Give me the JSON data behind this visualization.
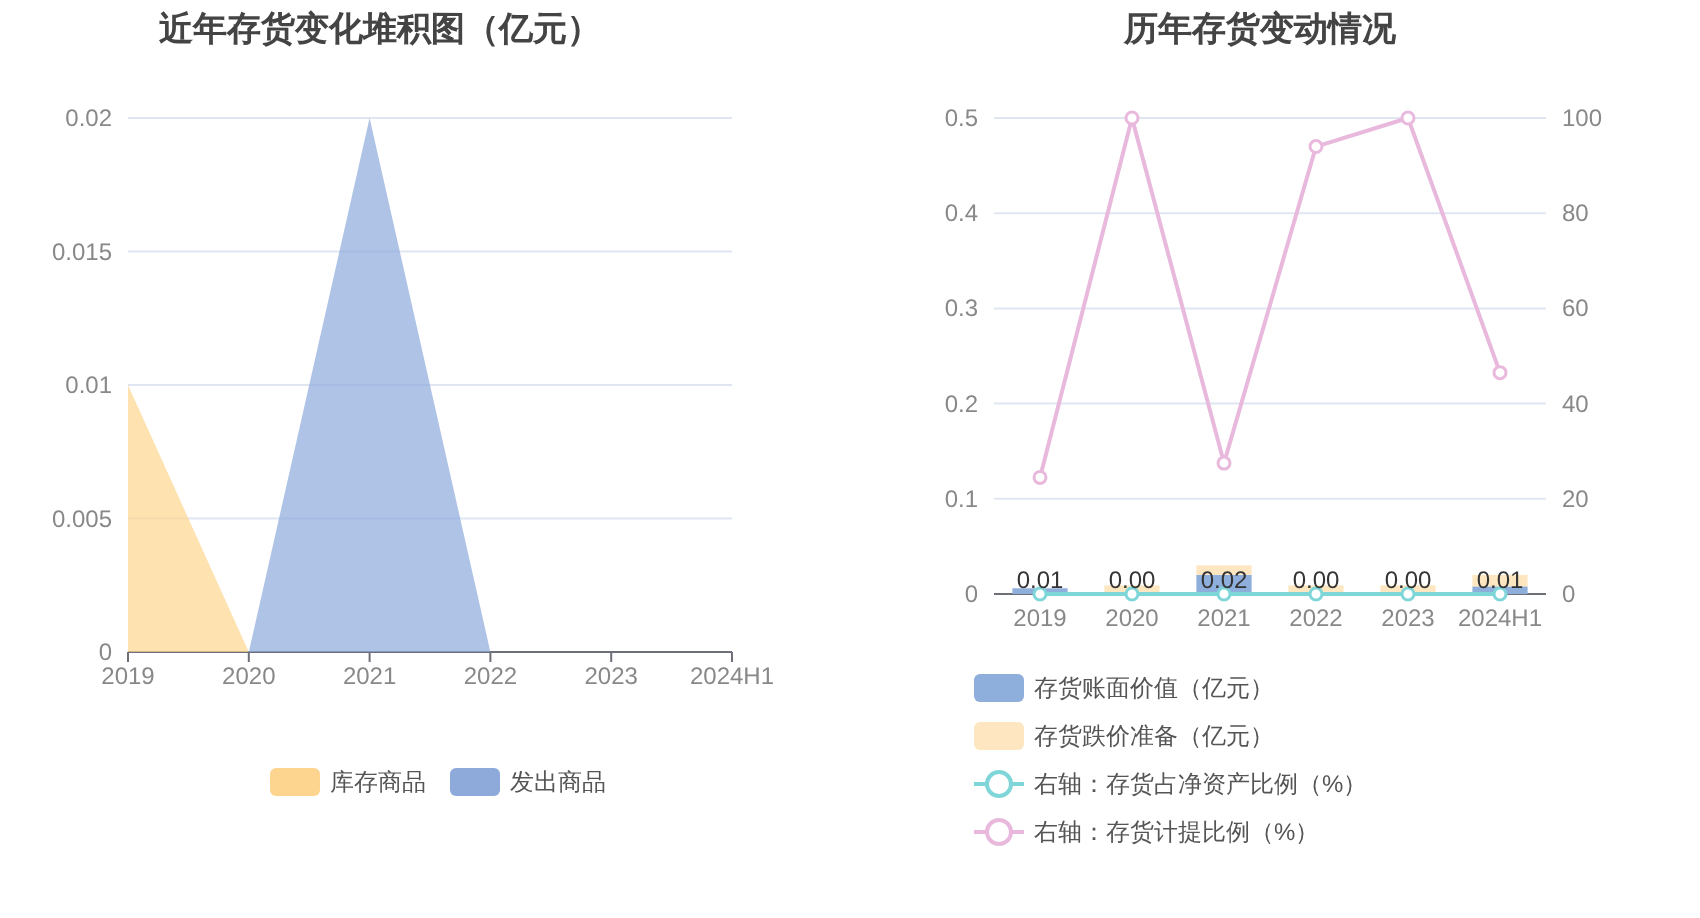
{
  "chart_data": [
    {
      "type": "area",
      "title": "近年存货变化堆积图（亿元）",
      "stacked": true,
      "categories": [
        "2019",
        "2020",
        "2021",
        "2022",
        "2023",
        "2024H1"
      ],
      "series": [
        {
          "name": "库存商品",
          "color": "#fdd58f",
          "values": [
            0.01,
            0,
            0,
            0,
            0,
            0
          ]
        },
        {
          "name": "发出商品",
          "color": "#8daadb",
          "values": [
            0,
            0,
            0.02,
            0,
            0,
            0
          ]
        }
      ],
      "ylim": [
        0,
        0.02
      ],
      "yticks": [
        0,
        0.005,
        0.01,
        0.015,
        0.02
      ],
      "grid": "y",
      "legend": "bottom"
    },
    {
      "type": "bar",
      "title": "历年存货变动情况",
      "stacked": true,
      "categories": [
        "2019",
        "2020",
        "2021",
        "2022",
        "2023",
        "2024H1"
      ],
      "series": [
        {
          "name": "存货账面价值（亿元）",
          "color": "#8eaedc",
          "values": [
            0.006,
            0.001,
            0.02,
            0.001,
            0.001,
            0.008
          ],
          "value_labels": [
            "0.01",
            "0.00",
            "0.02",
            "0.00",
            "0.00",
            "0.01"
          ]
        },
        {
          "name": "存货跌价准备（亿元）",
          "color": "#fde6c0",
          "values": [
            0,
            0.008,
            0.01,
            0.008,
            0.008,
            0.012
          ]
        },
        {
          "name": "右轴：存货占净资产比例（%）",
          "type": "line",
          "axis": "y2",
          "color": "#7fd6d9",
          "values": [
            0,
            0,
            0,
            0,
            0,
            0
          ]
        },
        {
          "name": "右轴：存货计提比例（%）",
          "type": "line",
          "axis": "y2",
          "color": "#e8b9dd",
          "values": [
            24.5,
            100,
            27.5,
            94,
            100,
            46.5
          ]
        }
      ],
      "marker": "circle",
      "ylim": [
        0,
        0.5
      ],
      "yticks": [
        0,
        0.1,
        0.2,
        0.3,
        0.4,
        0.5
      ],
      "y2lim": [
        0,
        100
      ],
      "y2ticks": [
        0,
        20,
        40,
        60,
        80,
        100
      ],
      "grid": "y",
      "legend": "bottom"
    }
  ]
}
